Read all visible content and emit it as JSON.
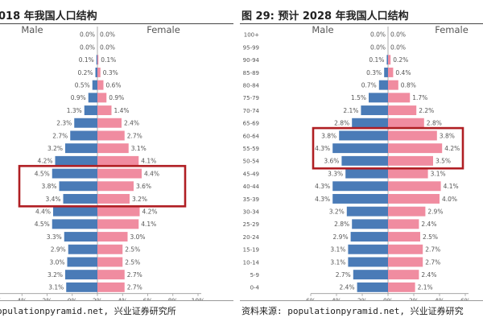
{
  "left_panel": {
    "title": "018 年我国人口结构",
    "source": "opulationpyramid.net, 兴业证券研究所"
  },
  "right_panel": {
    "title": "图 29: 预计 2028 年我国人口结构",
    "source": "资料来源: populationpyramid.net, 兴业证券研究"
  },
  "colors": {
    "male": "#4a7bb7",
    "female": "#f08ca0",
    "highlight": "#b01e23"
  },
  "chart_data": [
    {
      "type": "bar",
      "subtype": "population-pyramid",
      "xlim": [
        -10,
        10
      ],
      "x_ticks": [
        "6%",
        "4%",
        "2%",
        "0%",
        "2%",
        "4%",
        "6%",
        "8%",
        "10%"
      ],
      "series": [
        {
          "name": "Male",
          "values": [
            0.0,
            0.0,
            0.1,
            0.2,
            0.5,
            0.9,
            1.3,
            2.3,
            2.7,
            3.2,
            4.2,
            4.5,
            3.8,
            3.4,
            4.4,
            4.5,
            3.3,
            2.9,
            3.0,
            3.2,
            3.1
          ],
          "labels": [
            "0.0%",
            "0.0%",
            "0.1%",
            "0.2%",
            "0.5%",
            "0.9%",
            "1.3%",
            "2.3%",
            "2.7%",
            "3.2%",
            "4.2%",
            "4.5%",
            "3.8%",
            "3.4%",
            "4.4%",
            "4.5%",
            "3.3%",
            "2.9%",
            "3.0%",
            "3.2%",
            "3.1%"
          ]
        },
        {
          "name": "Female",
          "values": [
            0.0,
            0.0,
            0.1,
            0.3,
            0.6,
            0.9,
            1.4,
            2.4,
            2.7,
            3.1,
            4.1,
            4.4,
            3.6,
            3.2,
            4.2,
            4.1,
            3.0,
            2.5,
            2.5,
            2.7,
            2.7
          ],
          "labels": [
            "0.0%",
            "0.0%",
            "0.1%",
            "0.3%",
            "0.6%",
            "0.9%",
            "1.4%",
            "2.4%",
            "2.7%",
            "3.1%",
            "4.1%",
            "4.4%",
            "3.6%",
            "3.2%",
            "4.2%",
            "4.1%",
            "3.0%",
            "2.5%",
            "2.5%",
            "2.7%",
            "2.7%"
          ]
        }
      ],
      "highlight_rows": [
        11,
        13
      ]
    },
    {
      "type": "bar",
      "subtype": "population-pyramid",
      "xlim": [
        -6,
        6
      ],
      "x_ticks": [
        "6%",
        "4%",
        "2%",
        "0%",
        "2%",
        "4%",
        "6%"
      ],
      "categories": [
        "100+",
        "95-99",
        "90-94",
        "85-89",
        "80-84",
        "75-79",
        "70-74",
        "65-69",
        "60-64",
        "55-59",
        "50-54",
        "45-49",
        "40-44",
        "35-39",
        "30-34",
        "25-29",
        "20-24",
        "15-19",
        "10-14",
        "5-9",
        "0-4"
      ],
      "series": [
        {
          "name": "Male",
          "values": [
            0.0,
            0.0,
            0.1,
            0.3,
            0.7,
            1.5,
            2.1,
            2.8,
            3.8,
            4.3,
            3.6,
            3.3,
            4.3,
            4.3,
            3.2,
            2.8,
            2.9,
            3.1,
            3.1,
            2.7,
            2.4
          ],
          "labels": [
            "0.0%",
            "0.0%",
            "0.1%",
            "0.3%",
            "0.7%",
            "1.5%",
            "2.1%",
            "2.8%",
            "3.8%",
            "4.3%",
            "3.6%",
            "3.3%",
            "4.3%",
            "4.3%",
            "3.2%",
            "2.8%",
            "2.9%",
            "3.1%",
            "3.1%",
            "2.7%",
            "2.4%"
          ]
        },
        {
          "name": "Female",
          "values": [
            0.0,
            0.0,
            0.2,
            0.4,
            0.8,
            1.7,
            2.2,
            2.8,
            3.8,
            4.2,
            3.5,
            3.1,
            4.1,
            4.0,
            2.9,
            2.4,
            2.5,
            2.7,
            2.7,
            2.4,
            2.1
          ],
          "labels": [
            "0.0%",
            "0.0%",
            "0.2%",
            "0.4%",
            "0.8%",
            "1.7%",
            "2.2%",
            "2.8%",
            "3.8%",
            "4.2%",
            "3.5%",
            "3.1%",
            "4.1%",
            "4.0%",
            "2.9%",
            "2.4%",
            "2.5%",
            "2.7%",
            "2.7%",
            "2.4%",
            "2.1%"
          ]
        }
      ],
      "highlight_rows": [
        8,
        10
      ]
    }
  ]
}
